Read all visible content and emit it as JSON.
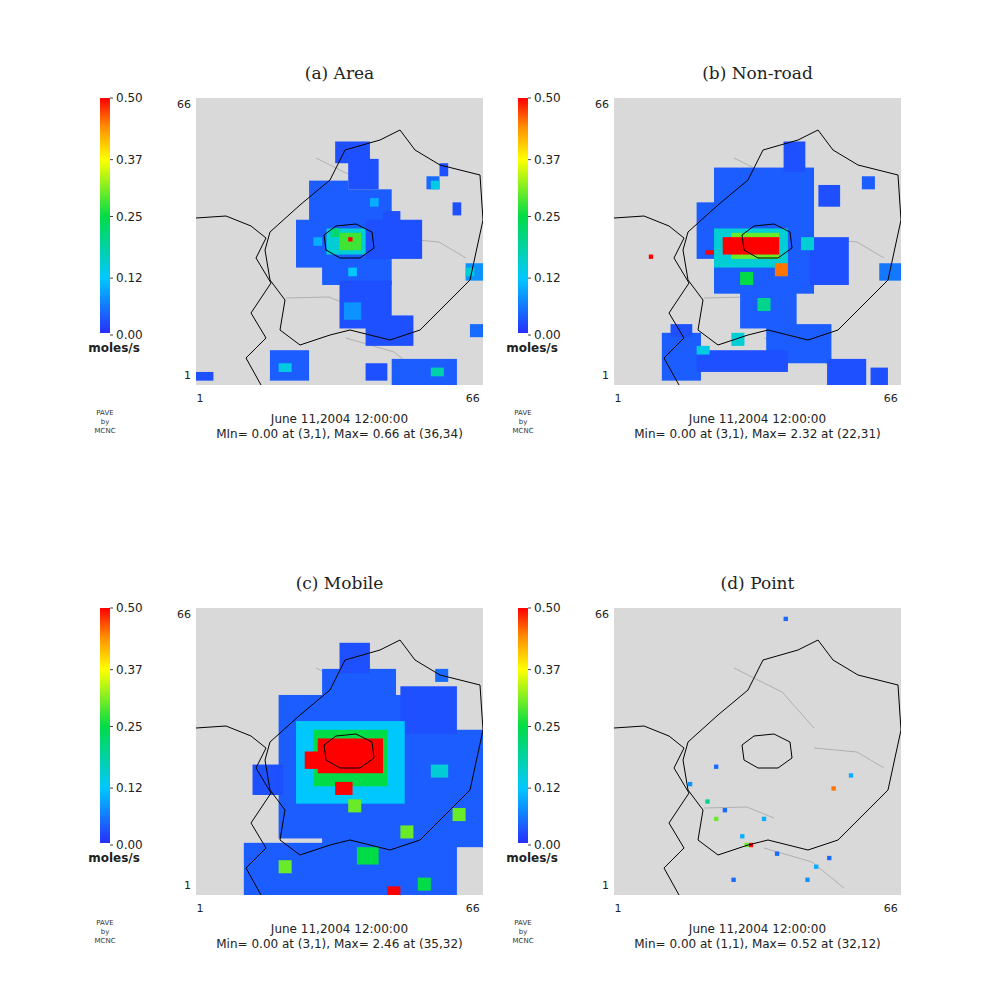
{
  "chart_data": [
    {
      "type": "heatmap",
      "title": "(a) Area",
      "xlim": [
        1,
        66
      ],
      "ylim": [
        1,
        66
      ],
      "xticks": [
        1,
        66
      ],
      "yticks": [
        1,
        66
      ],
      "colorbar": {
        "range": [
          0,
          0.5
        ],
        "ticks": [
          {
            "value": 0,
            "label": "0.00"
          },
          0.12,
          0.25,
          0.37,
          {
            "value": 0.5,
            "label": "0.50"
          }
        ],
        "label": "moles/s"
      },
      "footer": [
        "June 11,2004 12:00:00",
        "MIn= 0.00 at (3,1), Max= 0.66 at (36,34)"
      ],
      "credit": [
        "PAVE",
        "by",
        "MCNC"
      ],
      "cells": [
        [
          27,
          35,
          36,
          47,
          0.04
        ],
        [
          30,
          45,
          24,
          45,
          0.04
        ],
        [
          24,
          30,
          28,
          38,
          0.04
        ],
        [
          36,
          42,
          46,
          52,
          0.03
        ],
        [
          40,
          52,
          30,
          38,
          0.03
        ],
        [
          33,
          40,
          52,
          56,
          0.03
        ],
        [
          44,
          47,
          36,
          40,
          0.03
        ],
        [
          54,
          56,
          46,
          48,
          0.05
        ],
        [
          57,
          58,
          49,
          51,
          0.03
        ],
        [
          60,
          61,
          40,
          42,
          0.03
        ],
        [
          63,
          66,
          25,
          28,
          0.08
        ],
        [
          64,
          66,
          12,
          14,
          0.05
        ],
        [
          34,
          45,
          14,
          24,
          0.03
        ],
        [
          40,
          50,
          10,
          16,
          0.03
        ],
        [
          18,
          26,
          2,
          8,
          0.04
        ],
        [
          1,
          4,
          2,
          3,
          0.03
        ],
        [
          46,
          60,
          1,
          6,
          0.04
        ],
        [
          40,
          44,
          2,
          5,
          0.03
        ],
        [
          35,
          38,
          16,
          19,
          0.08
        ],
        [
          31,
          39,
          31,
          36,
          0.15
        ],
        [
          34,
          38,
          32,
          35,
          0.28
        ],
        [
          32,
          33,
          35,
          36,
          0.22
        ],
        [
          36,
          36,
          34,
          34,
          0.66
        ],
        [
          20,
          22,
          4,
          5,
          0.14
        ],
        [
          55,
          57,
          3,
          4,
          0.18
        ],
        [
          36,
          37,
          26,
          27,
          0.12
        ],
        [
          28,
          29,
          33,
          34,
          0.1
        ],
        [
          41,
          42,
          42,
          43,
          0.1
        ],
        [
          63,
          64,
          26,
          27,
          0.15
        ],
        [
          55,
          56,
          46,
          47,
          0.14
        ]
      ]
    },
    {
      "type": "heatmap",
      "title": "(b) Non-road",
      "xlim": [
        1,
        66
      ],
      "ylim": [
        1,
        66
      ],
      "xticks": [
        1,
        66
      ],
      "yticks": [
        1,
        66
      ],
      "colorbar": {
        "range": [
          0,
          0.5
        ],
        "ticks": [
          {
            "value": 0,
            "label": "0.00"
          },
          0.12,
          0.25,
          0.37,
          {
            "value": 0.5,
            "label": "0.50"
          }
        ],
        "label": "moles/s"
      },
      "footer": [
        "June 11,2004 12:00:00",
        "Min= 0.00 at (3,1), Max= 2.32 at (22,31)"
      ],
      "credit": [
        "PAVE",
        "by",
        "MCNC"
      ],
      "cells": [
        [
          24,
          46,
          22,
          50,
          0.04
        ],
        [
          20,
          30,
          30,
          42,
          0.04
        ],
        [
          30,
          42,
          14,
          24,
          0.04
        ],
        [
          36,
          50,
          6,
          14,
          0.04
        ],
        [
          40,
          44,
          50,
          56,
          0.03
        ],
        [
          46,
          54,
          24,
          34,
          0.03
        ],
        [
          12,
          20,
          2,
          12,
          0.04
        ],
        [
          20,
          40,
          4,
          8,
          0.03
        ],
        [
          50,
          58,
          1,
          6,
          0.03
        ],
        [
          60,
          63,
          1,
          4,
          0.03
        ],
        [
          58,
          60,
          46,
          48,
          0.04
        ],
        [
          62,
          66,
          25,
          28,
          0.06
        ],
        [
          14,
          18,
          12,
          14,
          0.03
        ],
        [
          48,
          52,
          42,
          46,
          0.03
        ],
        [
          24,
          40,
          28,
          36,
          0.15
        ],
        [
          28,
          38,
          30,
          35,
          0.3
        ],
        [
          26,
          38,
          31,
          34,
          0.55
        ],
        [
          22,
          23,
          31,
          31,
          2.32
        ],
        [
          30,
          32,
          24,
          26,
          0.25
        ],
        [
          34,
          36,
          18,
          20,
          0.2
        ],
        [
          28,
          30,
          10,
          12,
          0.15
        ],
        [
          44,
          46,
          32,
          34,
          0.15
        ],
        [
          38,
          40,
          26,
          28,
          0.45
        ],
        [
          9,
          9,
          30,
          30,
          0.6
        ],
        [
          20,
          22,
          8,
          9,
          0.14
        ]
      ]
    },
    {
      "type": "heatmap",
      "title": "(c) Mobile",
      "xlim": [
        1,
        66
      ],
      "ylim": [
        1,
        66
      ],
      "xticks": [
        1,
        66
      ],
      "yticks": [
        1,
        66
      ],
      "colorbar": {
        "range": [
          0,
          0.5
        ],
        "ticks": [
          {
            "value": 0,
            "label": "0.00"
          },
          0.12,
          0.25,
          0.37,
          {
            "value": 0.5,
            "label": "0.50"
          }
        ],
        "label": "moles/s"
      },
      "footer": [
        "June 11,2004 12:00:00",
        "Min= 0.00 at (3,1), Max= 2.46 at (35,32)"
      ],
      "credit": [
        "PAVE",
        "by",
        "MCNC"
      ],
      "cells": [
        [
          20,
          50,
          14,
          46,
          0.04
        ],
        [
          30,
          46,
          46,
          52,
          0.04
        ],
        [
          34,
          40,
          52,
          58,
          0.03
        ],
        [
          44,
          66,
          12,
          38,
          0.04
        ],
        [
          12,
          30,
          1,
          12,
          0.04
        ],
        [
          30,
          60,
          1,
          14,
          0.04
        ],
        [
          48,
          60,
          38,
          48,
          0.03
        ],
        [
          56,
          58,
          50,
          52,
          0.05
        ],
        [
          14,
          20,
          24,
          30,
          0.03
        ],
        [
          24,
          48,
          22,
          40,
          0.12
        ],
        [
          28,
          44,
          26,
          38,
          0.25
        ],
        [
          29,
          43,
          29,
          36,
          0.6
        ],
        [
          26,
          30,
          30,
          33,
          0.55
        ],
        [
          33,
          36,
          24,
          26,
          0.55
        ],
        [
          36,
          38,
          20,
          22,
          0.3
        ],
        [
          20,
          22,
          6,
          8,
          0.3
        ],
        [
          38,
          42,
          8,
          11,
          0.25
        ],
        [
          48,
          50,
          14,
          16,
          0.3
        ],
        [
          60,
          62,
          18,
          20,
          0.3
        ],
        [
          52,
          54,
          2,
          4,
          0.25
        ],
        [
          45,
          47,
          1,
          2,
          0.6
        ],
        [
          55,
          58,
          28,
          30,
          0.15
        ],
        [
          35,
          35,
          32,
          32,
          2.46
        ]
      ]
    },
    {
      "type": "heatmap",
      "title": "(d) Point",
      "xlim": [
        1,
        66
      ],
      "ylim": [
        1,
        66
      ],
      "xticks": [
        1,
        66
      ],
      "yticks": [
        1,
        66
      ],
      "colorbar": {
        "range": [
          0,
          0.5
        ],
        "ticks": [
          {
            "value": 0,
            "label": "0.00"
          },
          0.12,
          0.25,
          0.37,
          {
            "value": 0.5,
            "label": "0.50"
          }
        ],
        "label": "moles/s"
      },
      "footer": [
        "June 11,2004 12:00:00",
        "Min= 0.00 at (1,1), Max= 0.52 at (32,12)"
      ],
      "credit": [
        "PAVE",
        "by",
        "MCNC"
      ],
      "cells": [
        [
          32,
          32,
          12,
          12,
          0.52
        ],
        [
          51,
          51,
          25,
          25,
          0.45
        ],
        [
          22,
          22,
          22,
          22,
          0.2
        ],
        [
          24,
          24,
          18,
          18,
          0.3
        ],
        [
          30,
          30,
          14,
          14,
          0.1
        ],
        [
          26,
          26,
          20,
          20,
          0.05
        ],
        [
          35,
          35,
          18,
          18,
          0.1
        ],
        [
          38,
          38,
          10,
          10,
          0.05
        ],
        [
          45,
          45,
          4,
          4,
          0.08
        ],
        [
          47,
          47,
          7,
          7,
          0.1
        ],
        [
          55,
          55,
          28,
          28,
          0.1
        ],
        [
          24,
          24,
          30,
          30,
          0.05
        ],
        [
          40,
          40,
          64,
          64,
          0.05
        ],
        [
          18,
          18,
          26,
          26,
          0.08
        ],
        [
          50,
          50,
          9,
          9,
          0.05
        ],
        [
          28,
          28,
          4,
          4,
          0.05
        ],
        [
          31,
          31,
          12,
          12,
          0.3
        ]
      ]
    }
  ]
}
